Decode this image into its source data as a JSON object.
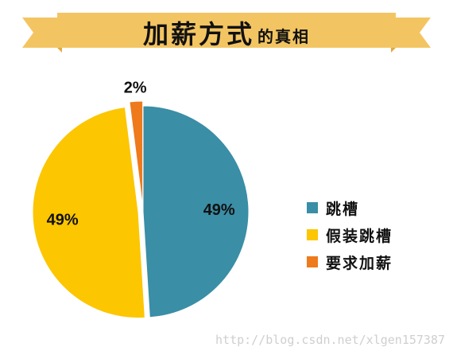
{
  "title": {
    "main": "加薪方式",
    "sub": "的真相"
  },
  "colors": {
    "banner": "#F3C562",
    "banner_dark": "#E2A93D"
  },
  "chart_data": {
    "type": "pie",
    "title": "加薪方式的真相",
    "slices": [
      {
        "name": "跳槽",
        "value": 49,
        "label": "49%",
        "color": "#3A8EA6"
      },
      {
        "name": "假装跳槽",
        "value": 49,
        "label": "49%",
        "color": "#FCC600"
      },
      {
        "name": "要求加薪",
        "value": 2,
        "label": "2%",
        "color": "#EE7A1B"
      }
    ],
    "start_angle_deg": 0,
    "direction": "clockwise",
    "exploded": [
      "假装跳槽",
      "要求加薪"
    ],
    "legend_position": "right"
  },
  "watermark": "http://blog.csdn.net/xlgen157387"
}
